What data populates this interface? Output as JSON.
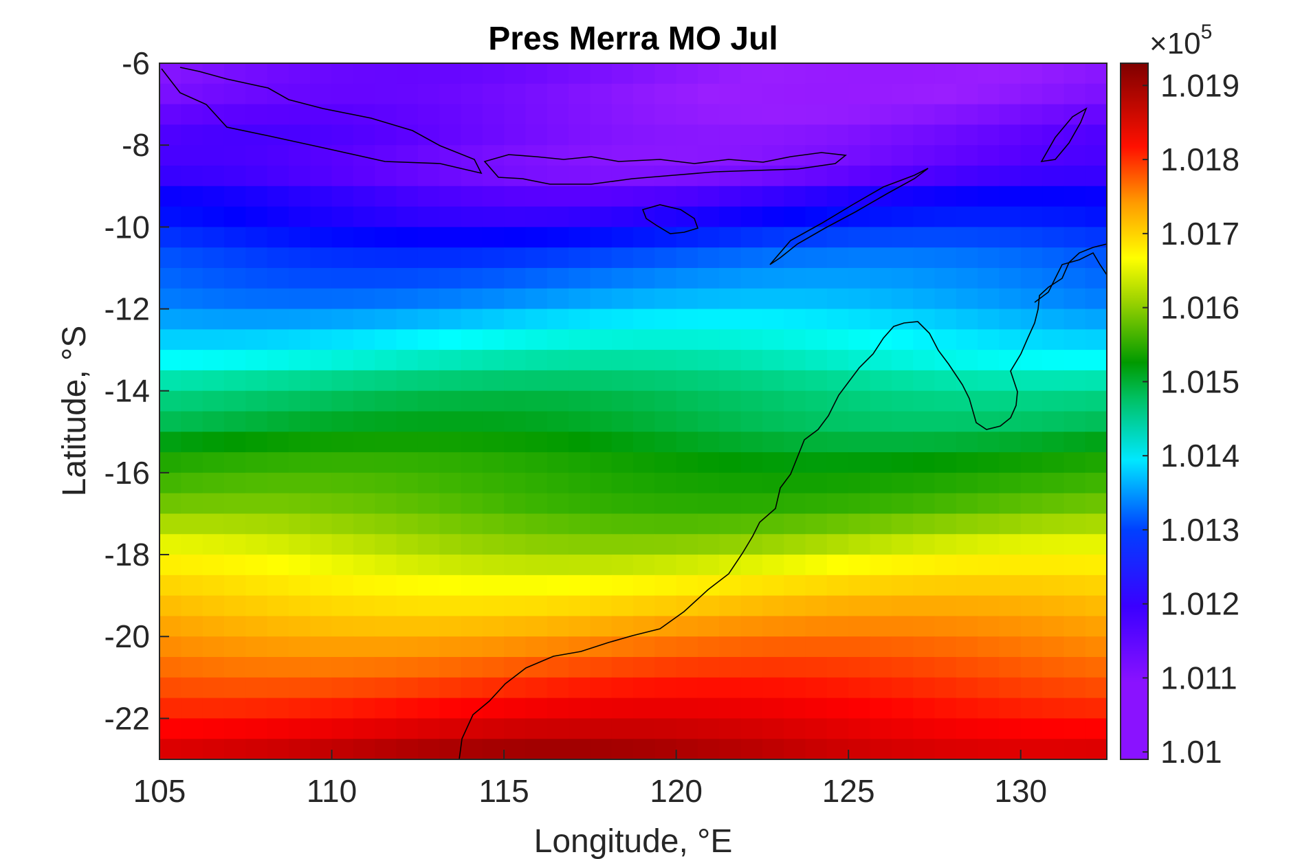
{
  "chart_data": {
    "type": "heatmap",
    "title": "Pres Merra MO Jul",
    "xlabel": "Longitude, °E",
    "ylabel": "Latitude, °S",
    "xlim": [
      105,
      132.5
    ],
    "ylim": [
      -23,
      -6
    ],
    "x_ticks": [
      "105",
      "110",
      "115",
      "120",
      "125",
      "130"
    ],
    "x_tick_values": [
      105,
      110,
      115,
      120,
      125,
      130
    ],
    "y_ticks": [
      "-6",
      "-8",
      "-10",
      "-12",
      "-14",
      "-16",
      "-18",
      "-20",
      "-22"
    ],
    "y_tick_values": [
      -6,
      -8,
      -10,
      -12,
      -14,
      -16,
      -18,
      -20,
      -22
    ],
    "colorbar": {
      "ticks": [
        "1.01",
        "1.011",
        "1.012",
        "1.013",
        "1.014",
        "1.015",
        "1.016",
        "1.017",
        "1.018",
        "1.019"
      ],
      "tick_values": [
        1.01,
        1.011,
        1.012,
        1.013,
        1.014,
        1.015,
        1.016,
        1.017,
        1.018,
        1.019
      ],
      "multiplier_base": "×10",
      "multiplier_exponent": "5",
      "range": [
        1.0099,
        1.0193
      ],
      "colormap": [
        "#7f00ff",
        "#9a1eff",
        "#5a00ff",
        "#0000ff",
        "#0050ff",
        "#00a8ff",
        "#00ffff",
        "#00e0a0",
        "#00c05a",
        "#009a00",
        "#3cb400",
        "#96d200",
        "#ffff00",
        "#ffc800",
        "#ff8c00",
        "#ff4600",
        "#ff0000",
        "#c80000",
        "#7f0000"
      ]
    },
    "grid": false,
    "cell_size_deg": [
      0.625,
      0.5
    ],
    "row_latitudes": [
      -6.25,
      -6.75,
      -7.25,
      -7.75,
      -8.25,
      -8.75,
      -9.25,
      -9.75,
      -10.25,
      -10.75,
      -11.25,
      -11.75,
      -12.25,
      -12.75,
      -13.25,
      -13.75,
      -14.25,
      -14.75,
      -15.25,
      -15.75,
      -16.25,
      -16.75,
      -17.25,
      -17.75,
      -18.25,
      -18.75,
      -19.25,
      -19.75,
      -20.25,
      -20.75,
      -21.25,
      -21.75,
      -22.25,
      -22.75
    ],
    "row_pressure_x1e5": [
      1.0106,
      1.0106,
      1.0107,
      1.0108,
      1.0108,
      1.0109,
      1.0112,
      1.0114,
      1.0117,
      1.012,
      1.0122,
      1.0124,
      1.0127,
      1.013,
      1.0133,
      1.0137,
      1.014,
      1.0142,
      1.0145,
      1.0148,
      1.015,
      1.0152,
      1.0155,
      1.0158,
      1.0161,
      1.0164,
      1.0167,
      1.017,
      1.0173,
      1.0176,
      1.0179,
      1.0182,
      1.0185,
      1.0188
    ],
    "coastline_color": "#000000"
  }
}
